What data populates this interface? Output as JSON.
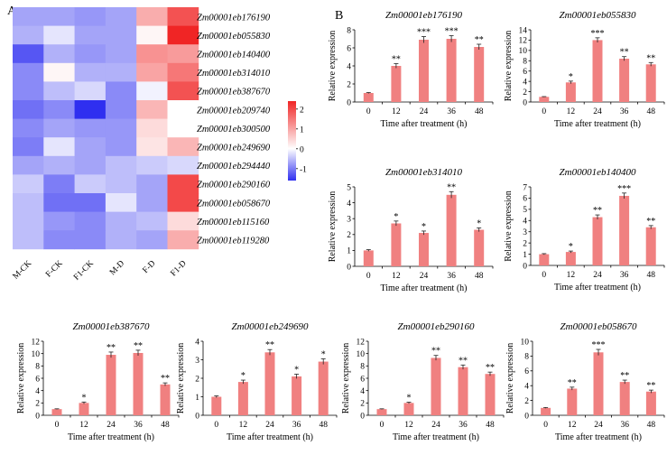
{
  "panel_labels": {
    "a": "A",
    "b": "B"
  },
  "chart_data": [
    {
      "type": "heatmap",
      "panel": "A",
      "columns": [
        "M-CK",
        "F-CK",
        "F1-CK",
        "M-D",
        "F-D",
        "F1-D"
      ],
      "rows": [
        "Zm00001eb176190",
        "Zm00001eb055830",
        "Zm00001eb140400",
        "Zm00001eb314010",
        "Zm00001eb387670",
        "Zm00001eb209740",
        "Zm00001eb300500",
        "Zm00001eb249690",
        "Zm00001eb294440",
        "Zm00001eb290160",
        "Zm00001eb058670",
        "Zm00001eb115160",
        "Zm00001eb119280"
      ],
      "values": [
        [
          -0.7,
          -0.7,
          -0.8,
          -0.7,
          0.9,
          1.9
        ],
        [
          -0.6,
          -0.2,
          -0.7,
          -0.7,
          0.1,
          2.4
        ],
        [
          -1.3,
          -0.6,
          -0.8,
          -0.7,
          1.2,
          1.1
        ],
        [
          -0.9,
          0.1,
          -0.6,
          -0.6,
          1.0,
          1.5
        ],
        [
          -0.9,
          -0.5,
          -0.3,
          -0.9,
          -0.1,
          1.9
        ],
        [
          -1.1,
          -0.9,
          -1.6,
          -0.9,
          0.8,
          0.0
        ],
        [
          -0.9,
          -0.7,
          -0.8,
          -0.8,
          0.4,
          0.0
        ],
        [
          -1.0,
          -0.2,
          -0.7,
          -0.8,
          0.3,
          0.8
        ],
        [
          -0.7,
          -0.6,
          -0.7,
          -0.5,
          -0.4,
          -0.3
        ],
        [
          -0.4,
          -1.0,
          -0.4,
          -0.5,
          -0.7,
          2.0
        ],
        [
          -0.5,
          -1.1,
          -1.1,
          -0.2,
          -0.7,
          2.0
        ],
        [
          -0.5,
          -0.8,
          -0.9,
          -0.6,
          -0.5,
          0.4
        ],
        [
          -0.5,
          -0.9,
          -0.9,
          -0.6,
          -0.7,
          0.9
        ]
      ],
      "colorbar": {
        "ticks": [
          "2",
          "1",
          "0",
          "-1"
        ],
        "min": -1.6,
        "max": 2.4,
        "low_color": "#2f2ff0",
        "mid_color": "#ffffff",
        "high_color": "#f02525"
      }
    },
    {
      "type": "bar",
      "panel": "B",
      "title": "Zm00001eb176190",
      "xlabel": "Time after treatment (h)",
      "ylabel": "Relative expression",
      "categories": [
        "0",
        "12",
        "24",
        "36",
        "48"
      ],
      "values": [
        1,
        4,
        6.9,
        7,
        6.1
      ],
      "errors": [
        0.05,
        0.25,
        0.35,
        0.35,
        0.3
      ],
      "significance": [
        "",
        "**",
        "***",
        "***",
        "**"
      ],
      "ylim": [
        0,
        8
      ],
      "yticks": [
        "0",
        "2",
        "4",
        "6",
        "8"
      ]
    },
    {
      "type": "bar",
      "panel": "B",
      "title": "Zm00001eb055830",
      "xlabel": "Time after treatment (h)",
      "ylabel": "Relative expression",
      "categories": [
        "0",
        "12",
        "24",
        "36",
        "48"
      ],
      "values": [
        1,
        3.8,
        12,
        8.4,
        7.3
      ],
      "errors": [
        0.05,
        0.25,
        0.45,
        0.4,
        0.35
      ],
      "significance": [
        "",
        "*",
        "***",
        "**",
        "**"
      ],
      "ylim": [
        0,
        14
      ],
      "yticks": [
        "0",
        "2",
        "4",
        "6",
        "8",
        "10",
        "12",
        "14"
      ]
    },
    {
      "type": "bar",
      "panel": "B",
      "title": "Zm00001eb314010",
      "xlabel": "Time after treatment (h)",
      "ylabel": "Relative expression",
      "categories": [
        "0",
        "12",
        "24",
        "36",
        "48"
      ],
      "values": [
        1,
        2.7,
        2.1,
        4.5,
        2.3
      ],
      "errors": [
        0.05,
        0.15,
        0.12,
        0.2,
        0.12
      ],
      "significance": [
        "",
        "*",
        "*",
        "**",
        "*"
      ],
      "ylim": [
        0,
        5
      ],
      "yticks": [
        "0",
        "1",
        "2",
        "3",
        "4",
        "5"
      ]
    },
    {
      "type": "bar",
      "panel": "B",
      "title": "Zm00001eb140400",
      "xlabel": "Time after treatment (h)",
      "ylabel": "Relative expression",
      "categories": [
        "0",
        "12",
        "24",
        "36",
        "48"
      ],
      "values": [
        1,
        1.2,
        4.3,
        6.2,
        3.4
      ],
      "errors": [
        0.05,
        0.08,
        0.2,
        0.25,
        0.15
      ],
      "significance": [
        "",
        "*",
        "**",
        "***",
        "**"
      ],
      "ylim": [
        0,
        7
      ],
      "yticks": [
        "0",
        "1",
        "2",
        "3",
        "4",
        "5",
        "6",
        "7"
      ]
    },
    {
      "type": "bar",
      "panel": "B",
      "title": "Zm00001eb387670",
      "xlabel": "Time after treatment (h)",
      "ylabel": "Relative expression",
      "categories": [
        "0",
        "12",
        "24",
        "36",
        "48"
      ],
      "values": [
        1,
        2,
        9.8,
        10.1,
        5
      ],
      "errors": [
        0.05,
        0.15,
        0.45,
        0.45,
        0.25
      ],
      "significance": [
        "",
        "*",
        "**",
        "**",
        "**"
      ],
      "ylim": [
        0,
        12
      ],
      "yticks": [
        "0",
        "2",
        "4",
        "6",
        "8",
        "10",
        "12"
      ]
    },
    {
      "type": "bar",
      "panel": "B",
      "title": "Zm00001eb249690",
      "xlabel": "Time after treatment (h)",
      "ylabel": "Relative expression",
      "categories": [
        "0",
        "12",
        "24",
        "36",
        "48"
      ],
      "values": [
        1,
        1.8,
        3.4,
        2.1,
        2.9
      ],
      "errors": [
        0.05,
        0.1,
        0.15,
        0.12,
        0.15
      ],
      "significance": [
        "",
        "*",
        "**",
        "*",
        "*"
      ],
      "ylim": [
        0,
        4
      ],
      "yticks": [
        "0",
        "1",
        "2",
        "3",
        "4"
      ]
    },
    {
      "type": "bar",
      "panel": "B",
      "title": "Zm00001eb290160",
      "xlabel": "Time after treatment (h)",
      "ylabel": "Relative expression",
      "categories": [
        "0",
        "12",
        "24",
        "36",
        "48"
      ],
      "values": [
        1,
        2,
        9.3,
        7.8,
        6.7
      ],
      "errors": [
        0.05,
        0.12,
        0.4,
        0.35,
        0.3
      ],
      "significance": [
        "",
        "*",
        "**",
        "**",
        "**"
      ],
      "ylim": [
        0,
        12
      ],
      "yticks": [
        "0",
        "2",
        "4",
        "6",
        "8",
        "10",
        "12"
      ]
    },
    {
      "type": "bar",
      "panel": "B",
      "title": "Zm00001eb058670",
      "xlabel": "Time after treatment (h)",
      "ylabel": "Relative expression",
      "categories": [
        "0",
        "12",
        "24",
        "36",
        "48"
      ],
      "values": [
        1,
        3.6,
        8.5,
        4.5,
        3.2
      ],
      "errors": [
        0.05,
        0.2,
        0.4,
        0.25,
        0.2
      ],
      "significance": [
        "",
        "**",
        "***",
        "**",
        "**"
      ],
      "ylim": [
        0,
        10
      ],
      "yticks": [
        "0",
        "2",
        "4",
        "6",
        "8",
        "10"
      ]
    }
  ]
}
